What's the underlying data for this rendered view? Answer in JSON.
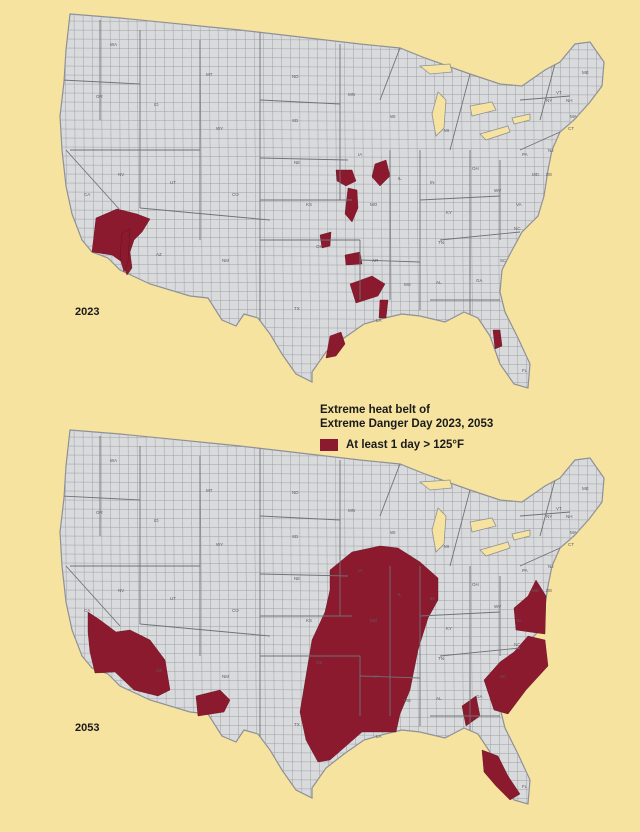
{
  "maps": [
    {
      "year_label": "2023",
      "heat_regions": [
        {
          "name": "southern-california-arizona-belt",
          "points": [
            [
              96,
              218
            ],
            [
              117,
              209
            ],
            [
              137,
              214
            ],
            [
              150,
              219
            ],
            [
              142,
              232
            ],
            [
              134,
              240
            ],
            [
              130,
              252
            ],
            [
              132,
              268
            ],
            [
              127,
              275
            ],
            [
              122,
              262
            ],
            [
              112,
              255
            ],
            [
              92,
              252
            ]
          ]
        },
        {
          "name": "arizona-river-strip",
          "points": [
            [
              122,
              233
            ],
            [
              130,
              229
            ],
            [
              128,
              262
            ],
            [
              124,
              272
            ],
            [
              120,
              258
            ]
          ]
        },
        {
          "name": "iowa-cluster-west",
          "points": [
            [
              336,
              170
            ],
            [
              352,
              170
            ],
            [
              356,
              181
            ],
            [
              346,
              186
            ],
            [
              337,
              181
            ]
          ]
        },
        {
          "name": "iowa-cluster-east",
          "points": [
            [
              375,
              164
            ],
            [
              386,
              160
            ],
            [
              390,
              176
            ],
            [
              380,
              186
            ],
            [
              372,
              177
            ]
          ]
        },
        {
          "name": "missouri-cluster",
          "points": [
            [
              348,
              188
            ],
            [
              357,
              190
            ],
            [
              358,
              208
            ],
            [
              352,
              222
            ],
            [
              345,
              214
            ]
          ]
        },
        {
          "name": "kansas-oklahoma-patch",
          "points": [
            [
              320,
              235
            ],
            [
              331,
              232
            ],
            [
              330,
              246
            ],
            [
              322,
              248
            ]
          ]
        },
        {
          "name": "arkansas-patch",
          "points": [
            [
              345,
              255
            ],
            [
              360,
              252
            ],
            [
              362,
              264
            ],
            [
              346,
              265
            ]
          ]
        },
        {
          "name": "ark-la-cluster",
          "points": [
            [
              350,
              284
            ],
            [
              372,
              276
            ],
            [
              385,
              284
            ],
            [
              378,
              296
            ],
            [
              356,
              303
            ]
          ]
        },
        {
          "name": "louisiana-river-patch",
          "points": [
            [
              380,
              300
            ],
            [
              388,
              300
            ],
            [
              386,
              318
            ],
            [
              379,
              318
            ]
          ]
        },
        {
          "name": "texas-gulf-coast",
          "points": [
            [
              330,
              336
            ],
            [
              341,
              332
            ],
            [
              345,
              344
            ],
            [
              336,
              356
            ],
            [
              326,
              358
            ]
          ]
        },
        {
          "name": "florida-tampa-patch",
          "points": [
            [
              493,
              330
            ],
            [
              500,
              330
            ],
            [
              502,
              346
            ],
            [
              495,
              349
            ]
          ]
        }
      ]
    },
    {
      "year_label": "2053",
      "heat_regions": [
        {
          "name": "california-arizona-belt",
          "points": [
            [
              88,
              612
            ],
            [
              100,
              620
            ],
            [
              116,
              632
            ],
            [
              130,
              630
            ],
            [
              150,
              640
            ],
            [
              165,
              660
            ],
            [
              170,
              690
            ],
            [
              158,
              696
            ],
            [
              134,
              690
            ],
            [
              115,
              672
            ],
            [
              95,
              673
            ],
            [
              90,
              652
            ],
            [
              88,
              632
            ]
          ]
        },
        {
          "name": "new-mexico-texas-patch",
          "points": [
            [
              196,
              696
            ],
            [
              220,
              690
            ],
            [
              230,
              700
            ],
            [
              224,
              712
            ],
            [
              198,
              716
            ]
          ]
        },
        {
          "name": "central-mississippi-belt",
          "points": [
            [
              330,
              570
            ],
            [
              352,
              552
            ],
            [
              380,
              546
            ],
            [
              398,
              548
            ],
            [
              420,
              562
            ],
            [
              438,
              578
            ],
            [
              438,
              600
            ],
            [
              428,
              618
            ],
            [
              418,
              650
            ],
            [
              410,
              690
            ],
            [
              400,
              714
            ],
            [
              396,
              732
            ],
            [
              362,
              732
            ],
            [
              330,
              760
            ],
            [
              318,
              762
            ],
            [
              306,
              740
            ],
            [
              300,
              712
            ],
            [
              306,
              676
            ],
            [
              312,
              640
            ],
            [
              325,
              612
            ],
            [
              330,
              590
            ]
          ]
        },
        {
          "name": "southeast-coast-band",
          "points": [
            [
              484,
              680
            ],
            [
              500,
              662
            ],
            [
              514,
              652
            ],
            [
              528,
              636
            ],
            [
              545,
              640
            ],
            [
              548,
              666
            ],
            [
              526,
              690
            ],
            [
              508,
              714
            ],
            [
              494,
              710
            ]
          ]
        },
        {
          "name": "mid-atlantic-band",
          "points": [
            [
              514,
              608
            ],
            [
              528,
              596
            ],
            [
              536,
              580
            ],
            [
              546,
              596
            ],
            [
              545,
              634
            ],
            [
              530,
              632
            ],
            [
              516,
              630
            ]
          ]
        },
        {
          "name": "alabama-georgia-patch",
          "points": [
            [
              462,
              706
            ],
            [
              476,
              696
            ],
            [
              480,
              716
            ],
            [
              466,
              726
            ]
          ]
        },
        {
          "name": "florida-peninsula-patch",
          "points": [
            [
              482,
              750
            ],
            [
              498,
              756
            ],
            [
              508,
              776
            ],
            [
              520,
              794
            ],
            [
              510,
              800
            ],
            [
              496,
              786
            ],
            [
              484,
              772
            ]
          ]
        }
      ]
    }
  ],
  "legend": {
    "title_line1": "Extreme heat belt of",
    "title_line2": "Extreme Danger Day 2023, 2053",
    "item_label": "At least 1 day > 125°F",
    "swatch_color": "#8b1a2e"
  },
  "state_abbreviations": [
    "WA",
    "OR",
    "CA",
    "NV",
    "ID",
    "MT",
    "WY",
    "UT",
    "AZ",
    "CO",
    "NM",
    "ND",
    "SD",
    "NE",
    "KS",
    "OK",
    "TX",
    "MN",
    "IA",
    "MO",
    "AR",
    "LA",
    "WI",
    "IL",
    "MS",
    "MI",
    "IN",
    "KY",
    "TN",
    "AL",
    "OH",
    "WV",
    "GA",
    "FL",
    "PA",
    "VA",
    "NC",
    "SC",
    "NY",
    "ME",
    "VT",
    "NH",
    "MA",
    "CT",
    "NJ",
    "DE",
    "MD"
  ]
}
